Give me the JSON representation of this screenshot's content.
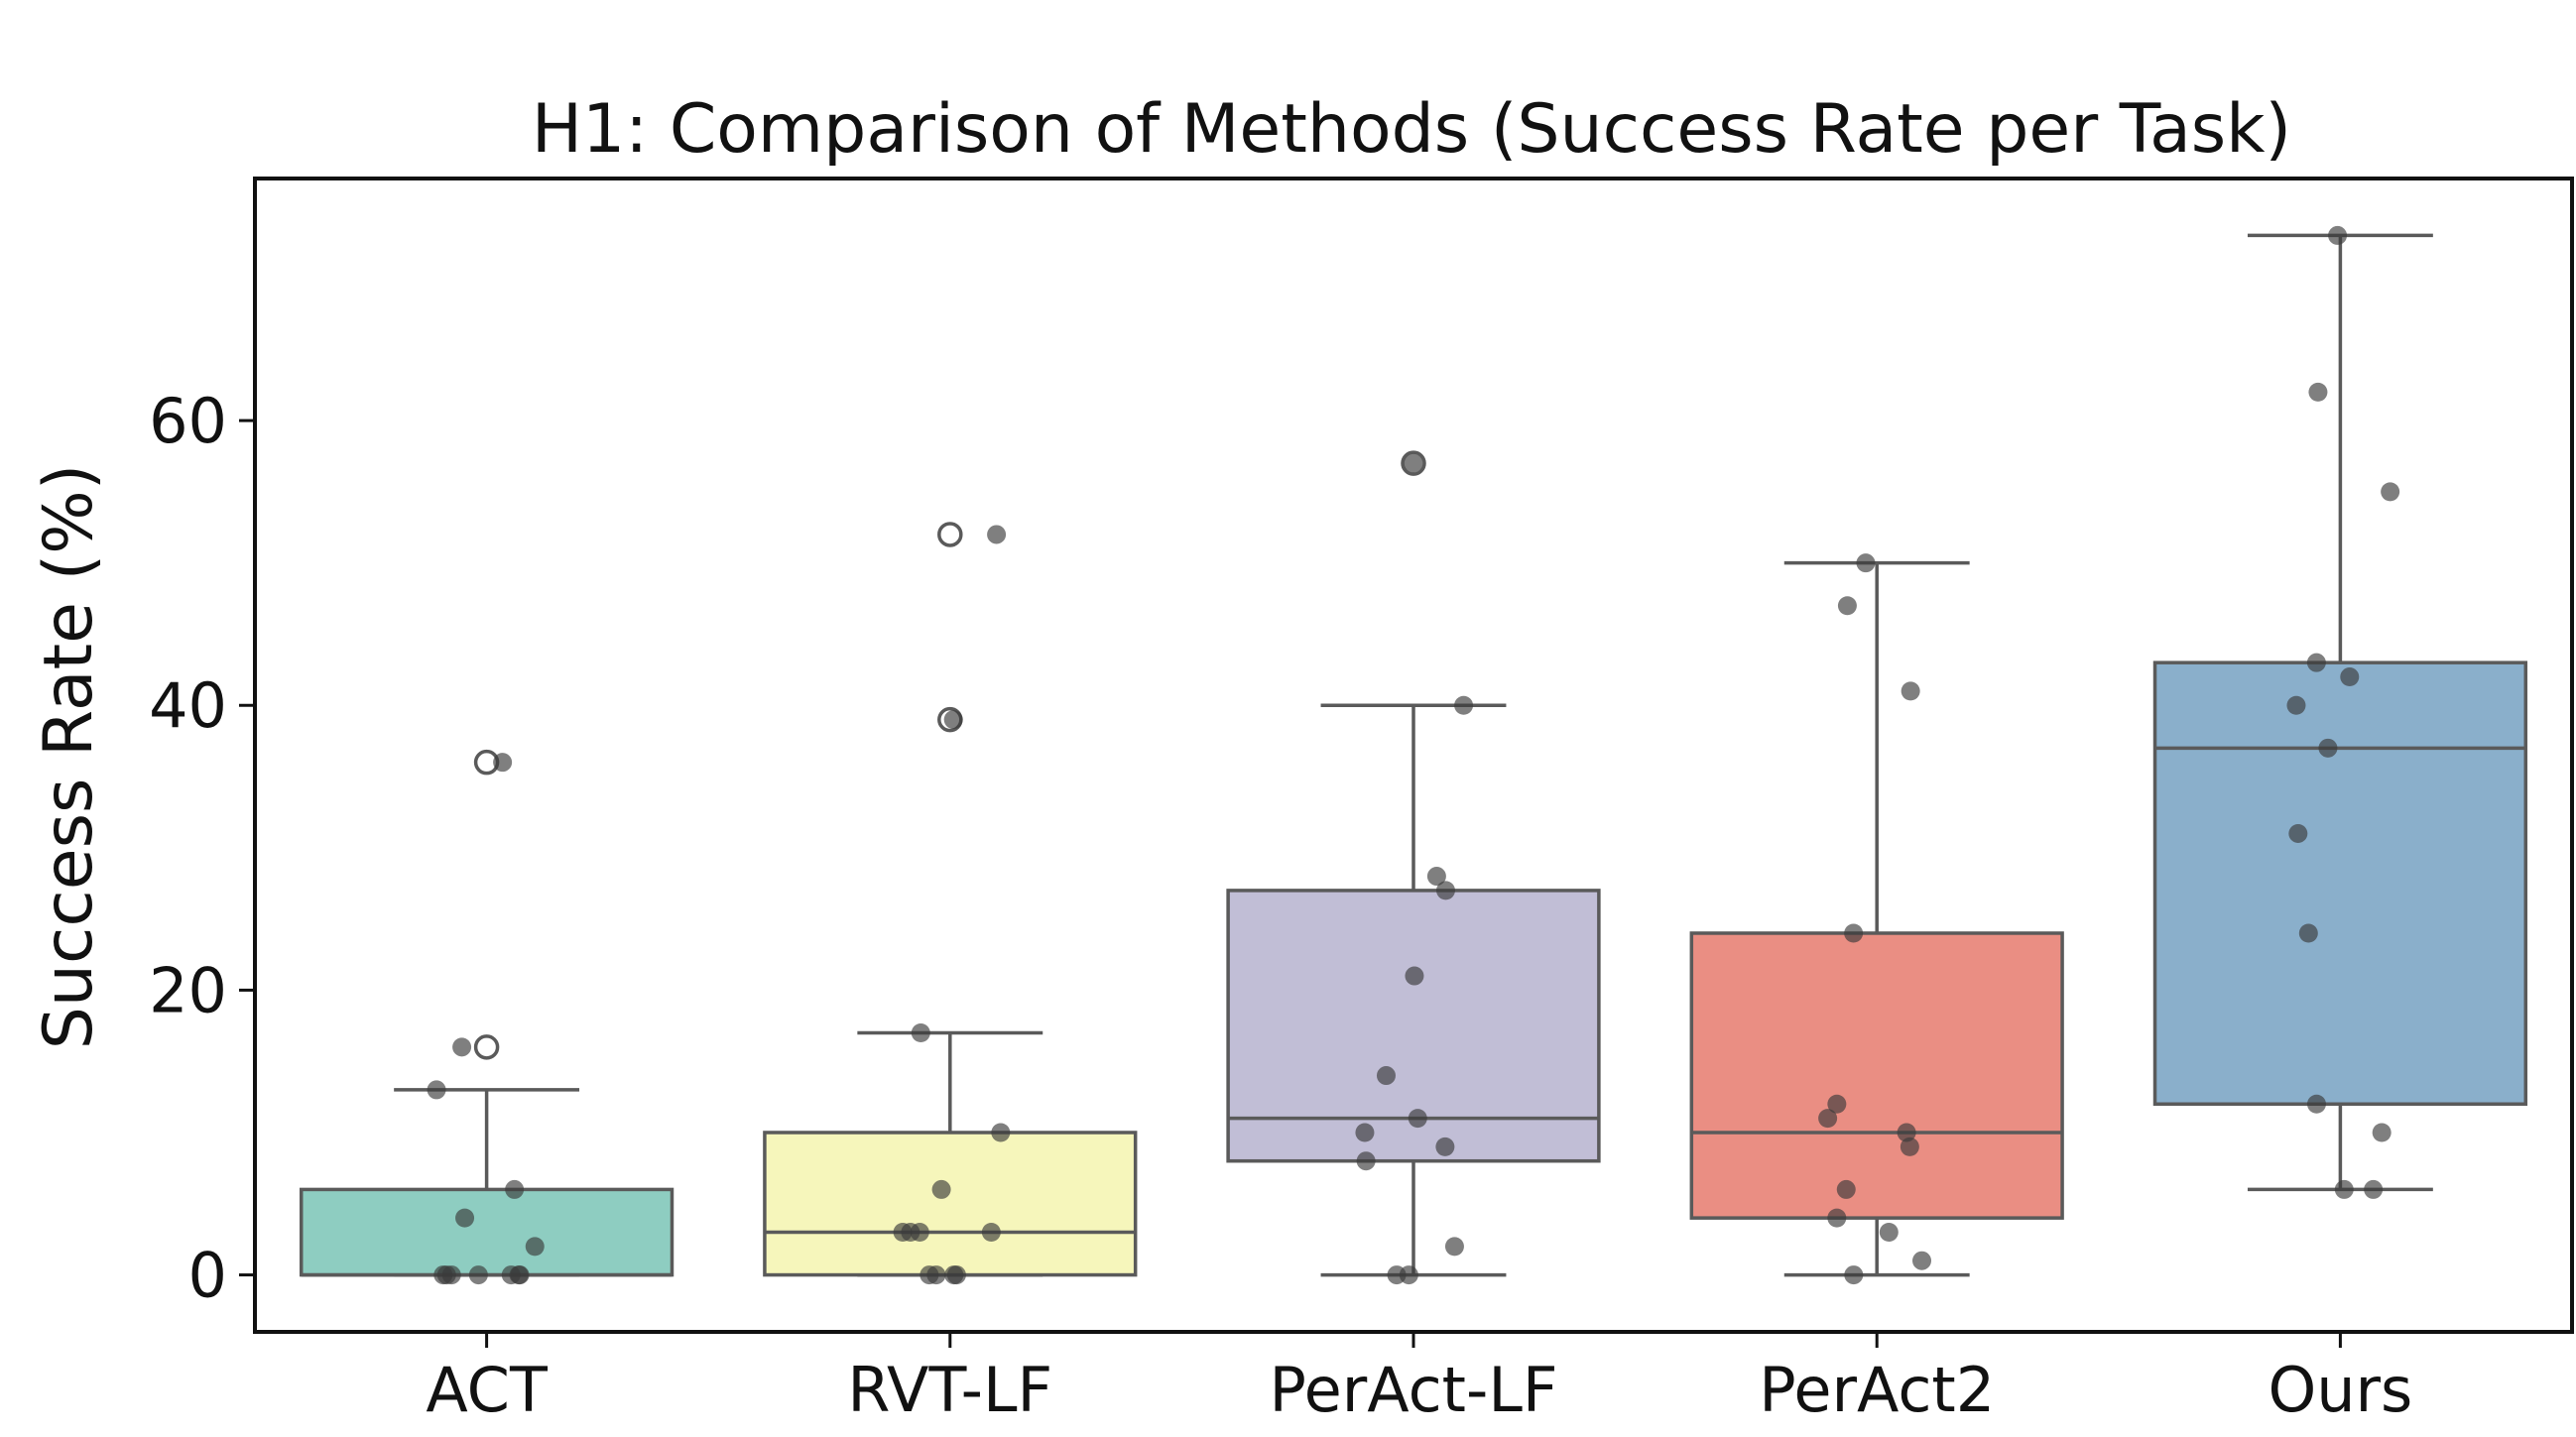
{
  "chart_data": {
    "type": "box",
    "title": "H1: Comparison of Methods (Success Rate per Task)",
    "xlabel": "",
    "ylabel": "Success Rate (%)",
    "ylim": [
      -4,
      77
    ],
    "yticks": [
      0,
      20,
      40,
      60
    ],
    "categories": [
      "ACT",
      "RVT-LF",
      "PerAct-LF",
      "PerAct2",
      "Ours"
    ],
    "boxes": [
      {
        "name": "ACT",
        "color": "#8ecdc1",
        "q1": 0,
        "median": 0,
        "q3": 6,
        "whisker_low": 0,
        "whisker_high": 13,
        "outliers": [
          16,
          36
        ],
        "points": [
          0,
          0,
          0,
          0,
          0,
          0,
          0,
          2,
          4,
          6,
          13,
          16,
          36
        ]
      },
      {
        "name": "RVT-LF",
        "color": "#f6f6bb",
        "q1": 0,
        "median": 3,
        "q3": 10,
        "whisker_low": 0,
        "whisker_high": 17,
        "outliers": [
          39,
          52
        ],
        "points": [
          0,
          0,
          0,
          0,
          3,
          3,
          3,
          3,
          6,
          10,
          17,
          39,
          52
        ]
      },
      {
        "name": "PerAct-LF",
        "color": "#c1bed6",
        "q1": 8,
        "median": 11,
        "q3": 27,
        "whisker_low": 0,
        "whisker_high": 40,
        "outliers": [
          57
        ],
        "points": [
          0,
          0,
          2,
          8,
          9,
          10,
          11,
          14,
          21,
          27,
          28,
          40,
          57
        ]
      },
      {
        "name": "PerAct2",
        "color": "#ea8e83",
        "q1": 4,
        "median": 10,
        "q3": 24,
        "whisker_low": 0,
        "whisker_high": 50,
        "outliers": [],
        "points": [
          0,
          1,
          3,
          4,
          6,
          9,
          10,
          11,
          12,
          24,
          41,
          47,
          50
        ]
      },
      {
        "name": "Ours",
        "color": "#8aafcb",
        "q1": 12,
        "median": 37,
        "q3": 43,
        "whisker_low": 6,
        "whisker_high": 73,
        "outliers": [],
        "points": [
          6,
          6,
          10,
          12,
          24,
          31,
          37,
          40,
          42,
          43,
          55,
          62,
          73
        ]
      }
    ]
  }
}
